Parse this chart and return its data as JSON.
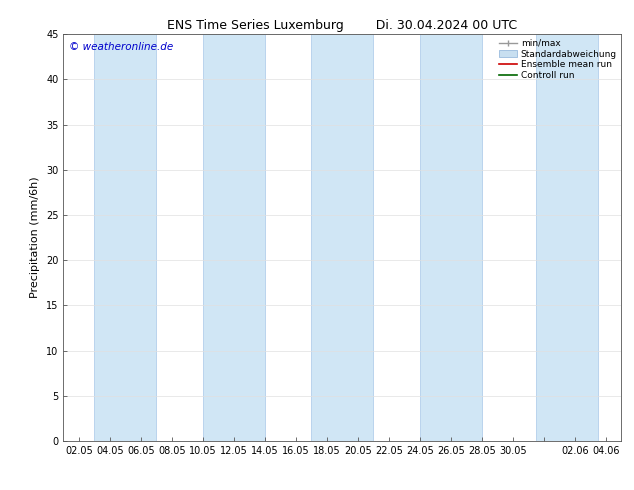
{
  "title_left": "ENS Time Series Luxemburg",
  "title_right": "Di. 30.04.2024 00 UTC",
  "ylabel": "Precipitation (mm/6h)",
  "ylim": [
    0,
    45
  ],
  "yticks": [
    0,
    5,
    10,
    15,
    20,
    25,
    30,
    35,
    40,
    45
  ],
  "xtick_labels": [
    "02.05",
    "04.05",
    "06.05",
    "08.05",
    "10.05",
    "12.05",
    "14.05",
    "16.05",
    "18.05",
    "20.05",
    "22.05",
    "24.05",
    "26.05",
    "28.05",
    "30.05",
    "",
    "02.06",
    "04.06"
  ],
  "copyright_text": "© weatheronline.de",
  "copyright_color": "#0000cc",
  "background_color": "#ffffff",
  "plot_bg_color": "#ffffff",
  "band_color": "#d0e6f5",
  "band_border_color": "#a8c8e8",
  "legend_entries": [
    "min/max",
    "Standardabweichung",
    "Ensemble mean run",
    "Controll run"
  ],
  "grid_color": "#e0e0e0",
  "title_fontsize": 9,
  "ylabel_fontsize": 8,
  "tick_labelsize": 7,
  "copyright_fontsize": 7.5
}
